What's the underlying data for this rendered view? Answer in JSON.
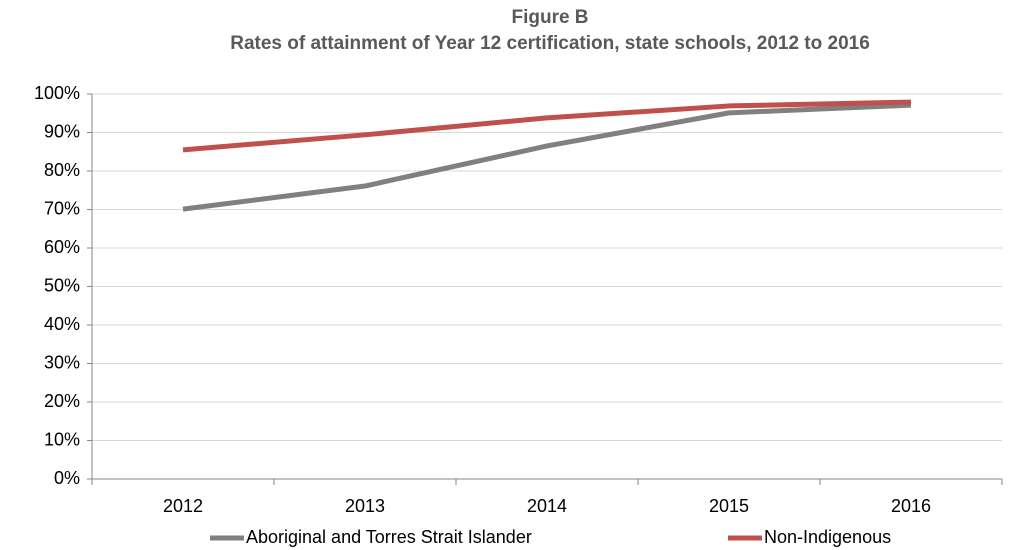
{
  "chart_data": {
    "type": "line",
    "title": "Figure B",
    "subtitle": "Rates of attainment of Year 12 certification, state schools, 2012 to 2016",
    "categories": [
      "2012",
      "2013",
      "2014",
      "2015",
      "2016"
    ],
    "series": [
      {
        "name": "Aboriginal and Torres Strait Islander",
        "color": "#808080",
        "values": [
          70.1,
          76.1,
          86.5,
          95.1,
          97.1
        ]
      },
      {
        "name": "Non-Indigenous",
        "color": "#c0504d",
        "values": [
          85.5,
          89.4,
          93.8,
          96.9,
          97.9
        ]
      }
    ],
    "ylim": [
      0,
      100
    ],
    "yticks": [
      {
        "value": 0,
        "label": "0%"
      },
      {
        "value": 10,
        "label": "10%"
      },
      {
        "value": 20,
        "label": "20%"
      },
      {
        "value": 30,
        "label": "30%"
      },
      {
        "value": 40,
        "label": "40%"
      },
      {
        "value": 50,
        "label": "50%"
      },
      {
        "value": 60,
        "label": "60%"
      },
      {
        "value": 70,
        "label": "70%"
      },
      {
        "value": 80,
        "label": "80%"
      },
      {
        "value": 90,
        "label": "90%"
      },
      {
        "value": 100,
        "label": "100%"
      }
    ],
    "grid": true,
    "legend": "bottom"
  }
}
